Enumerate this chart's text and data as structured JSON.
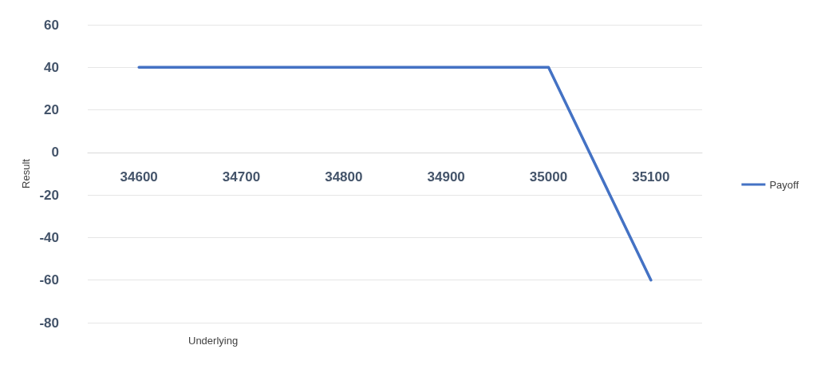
{
  "chart_data": {
    "type": "line",
    "xlabel": "Underlying",
    "ylabel": "Result",
    "categories": [
      "34600",
      "34700",
      "34800",
      "34900",
      "35000",
      "35100"
    ],
    "series": [
      {
        "name": "Payoff",
        "color": "#4472c4",
        "values": [
          40,
          40,
          40,
          40,
          40,
          -60
        ]
      }
    ],
    "ylim": [
      -80,
      60
    ],
    "yticks": [
      -80,
      -60,
      -40,
      -20,
      0,
      20,
      40,
      60
    ],
    "grid": "y",
    "legend": "right",
    "marker": "none",
    "line_style": "solid"
  }
}
